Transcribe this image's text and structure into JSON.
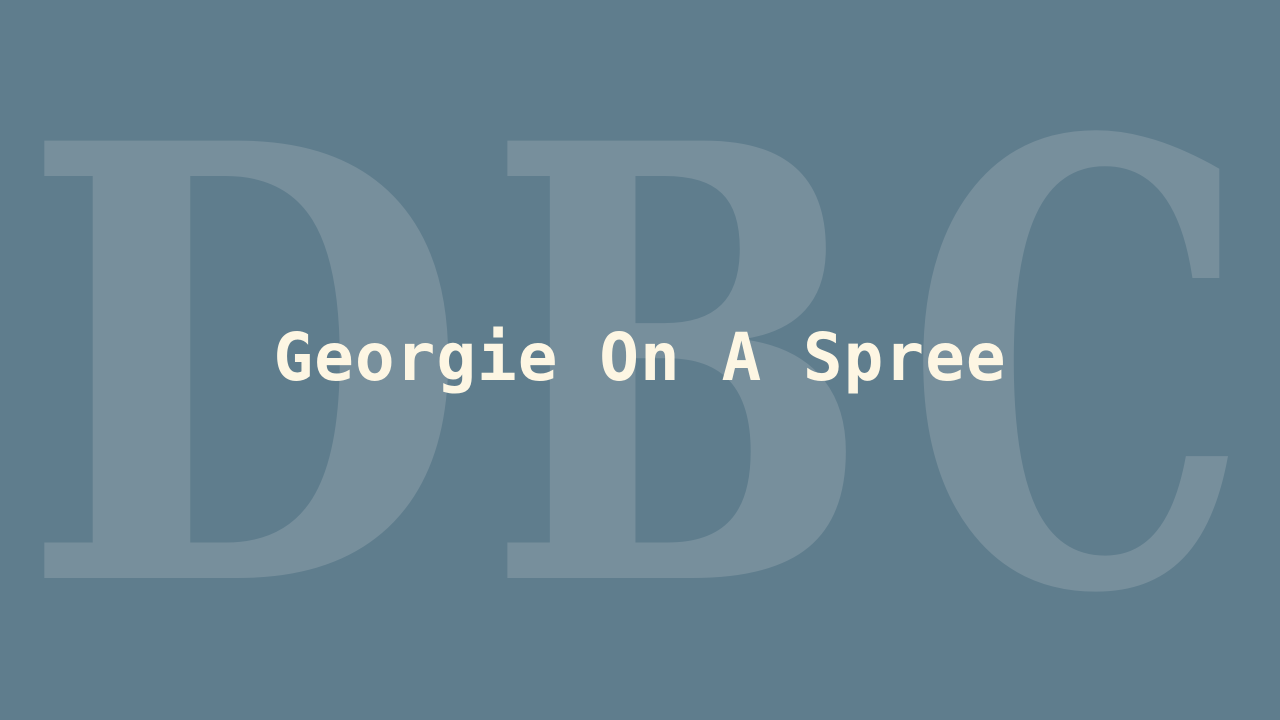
{
  "colors": {
    "background": "#5f7d8d",
    "monogram": "#778f9c",
    "title": "#fdf6e3"
  },
  "monogram": {
    "letters": [
      "D",
      "B",
      "C"
    ]
  },
  "title": "Georgie On A Spree"
}
